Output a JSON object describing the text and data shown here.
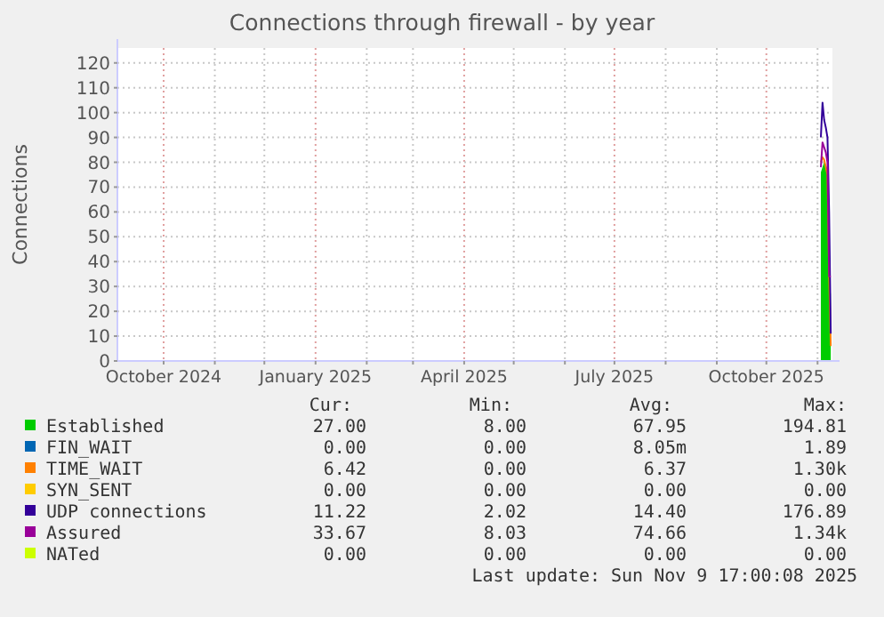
{
  "chart_data": {
    "type": "line",
    "title": "Connections through firewall - by year",
    "ylabel": "Connections",
    "x": [
      "2025-11-03",
      "2025-11-04",
      "2025-11-05",
      "2025-11-06",
      "2025-11-07",
      "2025-11-08",
      "2025-11-09"
    ],
    "xlim": [
      "2024-09-03",
      "2025-11-10"
    ],
    "xticks": [
      {
        "value": "2024-10-01",
        "label": "October 2024"
      },
      {
        "value": "2024-11-01",
        "label": null
      },
      {
        "value": "2024-12-01",
        "label": null
      },
      {
        "value": "2025-01-01",
        "label": "January 2025"
      },
      {
        "value": "2025-02-01",
        "label": null
      },
      {
        "value": "2025-03-01",
        "label": null
      },
      {
        "value": "2025-04-01",
        "label": "April 2025"
      },
      {
        "value": "2025-05-01",
        "label": null
      },
      {
        "value": "2025-06-01",
        "label": null
      },
      {
        "value": "2025-07-01",
        "label": "July 2025"
      },
      {
        "value": "2025-08-01",
        "label": null
      },
      {
        "value": "2025-09-01",
        "label": null
      },
      {
        "value": "2025-10-01",
        "label": "October 2025"
      },
      {
        "value": "2025-11-01",
        "label": null
      }
    ],
    "ylim": [
      0,
      126
    ],
    "yticks": [
      0,
      10,
      20,
      30,
      40,
      50,
      60,
      70,
      80,
      90,
      100,
      110,
      120
    ],
    "grid": true,
    "legend": "bottom",
    "series": [
      {
        "name": "Established",
        "type": "area",
        "color": "#00cc00",
        "values": [
          76,
          78,
          80,
          79,
          77,
          33,
          27
        ]
      },
      {
        "name": "FIN_WAIT",
        "color": "#0066b3",
        "values": [
          null,
          null,
          null,
          null,
          null,
          null,
          null
        ]
      },
      {
        "name": "TIME_WAIT",
        "color": "#ff8000",
        "values": [
          80,
          82,
          81,
          78,
          75,
          35,
          6
        ]
      },
      {
        "name": "SYN_SENT",
        "color": "#ffcc00",
        "values": [
          null,
          null,
          null,
          null,
          null,
          null,
          null
        ]
      },
      {
        "name": "UDP connections",
        "color": "#330099",
        "values": [
          90,
          104,
          97,
          94,
          90,
          60,
          11
        ]
      },
      {
        "name": "Assured",
        "color": "#990099",
        "values": [
          78,
          88,
          86,
          84,
          80,
          34,
          34
        ]
      },
      {
        "name": "NATed",
        "color": "#ccff00",
        "values": [
          null,
          null,
          null,
          null,
          null,
          null,
          null
        ]
      }
    ],
    "annotations": [
      "Cur:",
      "Min:",
      "Avg:",
      "Max:",
      "27.00",
      "8.00",
      "67.95",
      "194.81",
      "0.00",
      "0.00",
      "8.05m",
      "1.89",
      "6.42",
      "0.00",
      "6.37",
      "1.30k",
      "0.00",
      "0.00",
      "0.00",
      "0.00",
      "11.22",
      "2.02",
      "14.40",
      "176.89",
      "33.67",
      "8.03",
      "74.66",
      "1.34k",
      "0.00",
      "0.00",
      "0.00",
      "0.00",
      "Last update: Sun Nov  9 17:00:08 2025"
    ]
  }
}
